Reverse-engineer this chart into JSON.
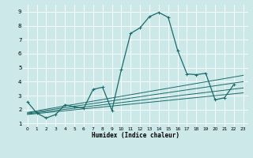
{
  "title": "",
  "xlabel": "Humidex (Indice chaleur)",
  "ylabel": "",
  "bg_color": "#cce8e8",
  "grid_color": "#aad4d4",
  "line_color": "#1a6b6b",
  "xlim": [
    -0.5,
    23.5
  ],
  "ylim": [
    0.8,
    9.5
  ],
  "xticks": [
    0,
    1,
    2,
    3,
    4,
    5,
    6,
    7,
    8,
    9,
    10,
    11,
    12,
    13,
    14,
    15,
    16,
    17,
    18,
    19,
    20,
    21,
    22,
    23
  ],
  "yticks": [
    1,
    2,
    3,
    4,
    5,
    6,
    7,
    8,
    9
  ],
  "series1_x": [
    0,
    1,
    2,
    3,
    4,
    5,
    6,
    7,
    8,
    9,
    10,
    11,
    12,
    13,
    14,
    15,
    16,
    17,
    18,
    19,
    20,
    21,
    22
  ],
  "series1_y": [
    2.55,
    1.75,
    1.4,
    1.65,
    2.35,
    2.2,
    2.1,
    3.45,
    3.6,
    1.95,
    4.85,
    7.45,
    7.85,
    8.65,
    8.95,
    8.6,
    6.25,
    4.55,
    4.5,
    4.6,
    2.7,
    2.85,
    3.8
  ],
  "trend_lines": [
    {
      "x": [
        0,
        23
      ],
      "y": [
        1.65,
        3.2
      ]
    },
    {
      "x": [
        0,
        23
      ],
      "y": [
        1.7,
        3.55
      ]
    },
    {
      "x": [
        0,
        23
      ],
      "y": [
        1.75,
        4.0
      ]
    },
    {
      "x": [
        0,
        23
      ],
      "y": [
        1.8,
        4.45
      ]
    }
  ]
}
